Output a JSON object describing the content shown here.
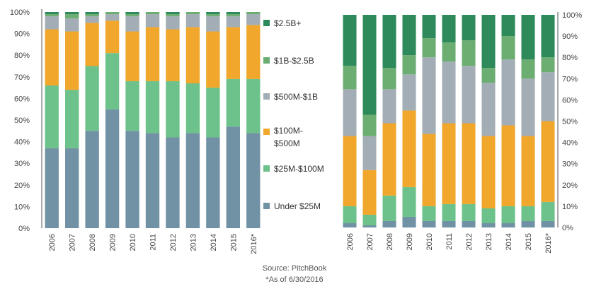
{
  "colors": {
    "$2.5B+": "#2e8a5a",
    "$1B-$2.5B": "#6cad72",
    "$500M-$1B": "#a3adb5",
    "$100M-$500M": "#f0a72c",
    "$25M-$100M": "#6cc28a",
    "Under $25M": "#7191a5"
  },
  "legend": {
    "items": [
      {
        "label": "$2.5B+",
        "series": "$2.5B+"
      },
      {
        "label": "$1B-$2.5B",
        "series": "$1B-$2.5B"
      },
      {
        "label": "$500M-$1B",
        "series": "$500M-$1B"
      },
      {
        "label": "$100M-\n$500M",
        "series": "$100M-$500M"
      },
      {
        "label": "$25M-$100M",
        "series": "$25M-$100M"
      },
      {
        "label": "Under $25M",
        "series": "Under $25M"
      }
    ]
  },
  "source": {
    "line1": "Source: PitchBook",
    "line2": "*As of 6/30/2016"
  },
  "chart_data": [
    {
      "type": "bar",
      "stacked": true,
      "categories": [
        "2006",
        "2007",
        "2008",
        "2009",
        "2010",
        "2011",
        "2012",
        "2013",
        "2014",
        "2015",
        "2016*"
      ],
      "ylim": [
        0,
        100
      ],
      "yticks": [
        "0%",
        "10%",
        "20%",
        "30%",
        "40%",
        "50%",
        "60%",
        "70%",
        "80%",
        "90%",
        "100%"
      ],
      "yaxis_position": "left",
      "grid": false,
      "series": [
        {
          "name": "Under $25M",
          "values": [
            37,
            37,
            45,
            55,
            45,
            44,
            42,
            44,
            42,
            47,
            44
          ]
        },
        {
          "name": "$25M-$100M",
          "values": [
            29,
            27,
            30,
            26,
            23,
            24,
            26,
            23,
            23,
            22,
            25
          ]
        },
        {
          "name": "$100M-$500M",
          "values": [
            26,
            27,
            20,
            15,
            23,
            25,
            24,
            26,
            26,
            24,
            25
          ]
        },
        {
          "name": "$500M-$1B",
          "values": [
            6,
            6,
            3,
            3,
            7,
            6,
            6,
            6,
            7,
            5,
            5
          ]
        },
        {
          "name": "$1B-$2.5B",
          "values": [
            1,
            2,
            1,
            1,
            1,
            1,
            1,
            1,
            1,
            1,
            1
          ]
        },
        {
          "name": "$2.5B+",
          "values": [
            1,
            1,
            1,
            0,
            1,
            0,
            1,
            0,
            1,
            1,
            0
          ]
        }
      ]
    },
    {
      "type": "bar",
      "stacked": true,
      "categories": [
        "2006",
        "2007",
        "2008",
        "2009",
        "2010",
        "2011",
        "2012",
        "2013",
        "2014",
        "2015",
        "2016*"
      ],
      "ylim": [
        0,
        100
      ],
      "yticks": [
        "0%",
        "10%",
        "20%",
        "30%",
        "40%",
        "50%",
        "60%",
        "70%",
        "80%",
        "90%",
        "100%"
      ],
      "yaxis_position": "right",
      "grid": false,
      "series": [
        {
          "name": "Under $25M",
          "values": [
            2,
            1,
            3,
            5,
            3,
            3,
            3,
            2,
            2,
            3,
            3
          ]
        },
        {
          "name": "$25M-$100M",
          "values": [
            8,
            5,
            12,
            14,
            7,
            8,
            8,
            7,
            8,
            7,
            9
          ]
        },
        {
          "name": "$100M-$500M",
          "values": [
            33,
            21,
            34,
            36,
            34,
            38,
            38,
            34,
            38,
            33,
            38
          ]
        },
        {
          "name": "$500M-$1B",
          "values": [
            22,
            16,
            16,
            17,
            36,
            29,
            27,
            25,
            31,
            27,
            23
          ]
        },
        {
          "name": "$1B-$2.5B",
          "values": [
            11,
            10,
            10,
            9,
            9,
            9,
            12,
            7,
            11,
            9,
            7
          ]
        },
        {
          "name": "$2.5B+",
          "values": [
            24,
            47,
            25,
            19,
            11,
            13,
            12,
            25,
            10,
            21,
            20
          ]
        }
      ]
    }
  ]
}
